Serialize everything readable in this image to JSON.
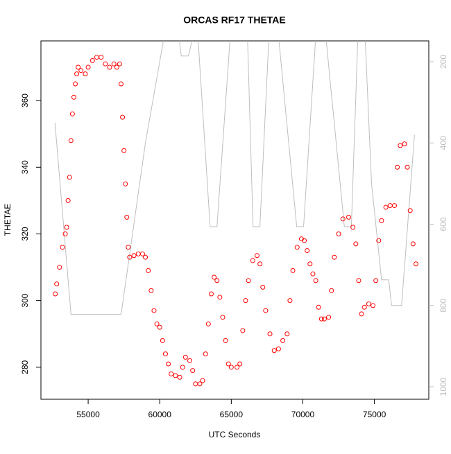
{
  "chart_data": {
    "type": "scatter",
    "title": "ORCAS RF17 THETAE",
    "x_label": "UTC Seconds",
    "y_label": "THETAE",
    "xlim": [
      51700,
      78800
    ],
    "xticks": [
      55000,
      60000,
      65000,
      70000,
      75000
    ],
    "ylim": [
      270.4,
      377.9
    ],
    "yticks": [
      280,
      300,
      320,
      340,
      360
    ],
    "y2lim": [
      1030.7,
      148.9
    ],
    "y2ticks": [
      200,
      400,
      600,
      800,
      1000
    ],
    "series": [
      {
        "type": "scatter",
        "color": "#ff0000",
        "x": [
          52700,
          52800,
          53000,
          53200,
          53400,
          53500,
          53600,
          53700,
          53800,
          53900,
          54000,
          54100,
          54200,
          54300,
          54500,
          54800,
          55000,
          55300,
          55600,
          55900,
          56200,
          56500,
          56800,
          57000,
          57200,
          57300,
          57400,
          57500,
          57600,
          57700,
          57800,
          57900,
          58200,
          58500,
          58800,
          59000,
          59200,
          59400,
          59600,
          59800,
          60000,
          60200,
          60400,
          60600,
          60800,
          61100,
          61400,
          61600,
          61800,
          62100,
          62300,
          62500,
          62800,
          63000,
          63200,
          63400,
          63600,
          63800,
          64000,
          64200,
          64400,
          64600,
          64800,
          65000,
          65400,
          65600,
          65800,
          66000,
          66200,
          66500,
          66800,
          67000,
          67200,
          67400,
          67700,
          68000,
          68300,
          68600,
          68900,
          69100,
          69300,
          69600,
          69900,
          70100,
          70300,
          70500,
          70700,
          70900,
          71100,
          71300,
          71500,
          71800,
          72000,
          72200,
          72500,
          72800,
          73200,
          73500,
          73700,
          73900,
          74100,
          74300,
          74600,
          74900,
          75100,
          75300,
          75500,
          75800,
          76100,
          76400,
          76600,
          76800,
          77100,
          77300,
          77500,
          77700,
          77900
        ],
        "values": [
          302,
          305,
          310,
          316,
          320,
          322,
          330,
          337,
          348,
          356,
          361,
          365,
          368,
          370,
          369,
          368,
          370,
          372,
          373,
          373,
          371,
          370,
          371,
          370,
          371,
          365,
          355,
          345,
          335,
          325,
          316,
          313,
          313.5,
          314,
          314,
          313,
          309,
          303,
          297,
          293,
          292,
          288,
          284,
          281,
          278,
          277.5,
          277,
          280,
          283,
          282,
          279,
          275,
          275,
          276,
          284,
          293,
          302,
          307,
          306,
          301,
          295,
          288,
          281,
          280,
          280,
          281,
          291,
          300,
          306,
          312,
          313.5,
          311,
          304,
          297,
          290,
          285,
          285.5,
          288,
          290,
          300,
          309,
          316,
          318.5,
          318,
          315,
          311,
          308,
          306,
          298,
          294.5,
          294.5,
          295,
          303,
          313,
          320,
          324.5,
          325,
          322,
          317,
          306,
          296,
          298,
          299,
          298.5,
          306,
          318,
          324,
          328,
          328.5,
          328.5,
          340,
          346.5,
          347,
          340,
          327,
          317,
          311
        ]
      },
      {
        "type": "line",
        "axis": "y2",
        "color": "#bebebe",
        "x": [
          52680,
          53800,
          57300,
          59000,
          60500,
          61100,
          61500,
          62000,
          62600,
          63520,
          64000,
          65000,
          65750,
          66100,
          66520,
          67000,
          67680,
          68200,
          69570,
          70050,
          70970,
          71500,
          72900,
          73390,
          73880,
          74300,
          74800,
          75500,
          76000,
          76200,
          76900,
          77800
        ],
        "values": [
          350,
          822,
          822,
          400,
          100,
          60,
          186,
          186,
          100,
          606,
          606,
          100,
          60,
          100,
          606,
          606,
          100,
          100,
          606,
          606,
          100,
          100,
          606,
          606,
          100,
          100,
          500,
          737,
          737,
          800,
          800,
          380
        ]
      }
    ]
  }
}
